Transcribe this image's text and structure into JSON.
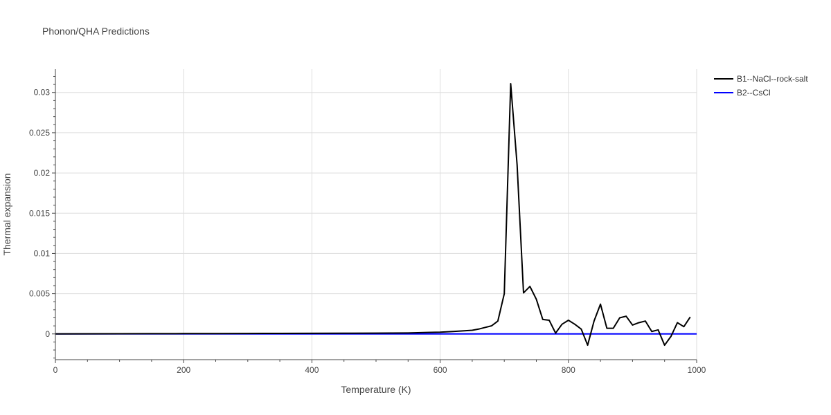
{
  "chart_data": {
    "type": "line",
    "title": "Phonon/QHA Predictions",
    "xlabel": "Temperature (K)",
    "ylabel": "Thermal expansion",
    "xlim": [
      0,
      1000
    ],
    "ylim": [
      -0.0032,
      0.0329
    ],
    "xticks": [
      0,
      200,
      400,
      600,
      800,
      1000
    ],
    "xtick_labels": [
      "0",
      "200",
      "400",
      "600",
      "800",
      "1000"
    ],
    "yticks": [
      0,
      0.005,
      0.01,
      0.015,
      0.02,
      0.025,
      0.03
    ],
    "ytick_labels": [
      "0",
      "0.005",
      "0.01",
      "0.015",
      "0.02",
      "0.025",
      "0.03"
    ],
    "grid": true,
    "legend_position": "top-right, outside plot",
    "series": [
      {
        "name": "B1--NaCl--rock-salt",
        "color": "#000000",
        "x": [
          0,
          50,
          100,
          150,
          200,
          250,
          300,
          350,
          400,
          450,
          500,
          550,
          580,
          600,
          620,
          640,
          650,
          660,
          670,
          680,
          690,
          700,
          710,
          720,
          730,
          740,
          750,
          760,
          770,
          780,
          790,
          800,
          810,
          820,
          830,
          840,
          850,
          860,
          870,
          880,
          890,
          900,
          910,
          920,
          930,
          940,
          950,
          960,
          970,
          980,
          990
        ],
        "y": [
          0,
          1e-05,
          2e-05,
          3e-05,
          4e-05,
          5e-05,
          6e-05,
          7e-05,
          8e-05,
          9e-05,
          0.0001,
          0.00012,
          0.00018,
          0.00022,
          0.0003,
          0.0004,
          0.00045,
          0.0006,
          0.0008,
          0.001,
          0.0016,
          0.005,
          0.0311,
          0.021,
          0.0051,
          0.0059,
          0.0043,
          0.0018,
          0.0017,
          0.0001,
          0.0012,
          0.0017,
          0.0012,
          0.0006,
          -0.0014,
          0.0016,
          0.0037,
          0.0007,
          0.0007,
          0.002,
          0.0022,
          0.0011,
          0.0014,
          0.0016,
          0.0003,
          0.0005,
          -0.0014,
          -0.0003,
          0.0014,
          0.0009,
          0.0021
        ]
      },
      {
        "name": "B2--CsCl",
        "color": "#0000ff",
        "x": [
          0,
          100,
          200,
          300,
          400,
          500,
          600,
          700,
          800,
          900,
          1000
        ],
        "y": [
          0,
          0,
          0,
          0,
          0,
          0,
          0,
          0,
          0,
          0,
          0
        ]
      }
    ]
  }
}
